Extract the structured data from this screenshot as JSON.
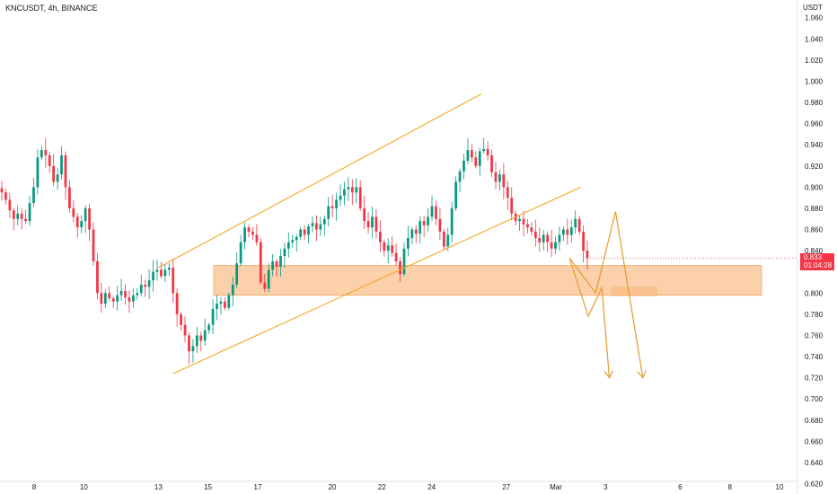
{
  "header": {
    "symbol_label": "KNCUSDT, 4h, BINANCE",
    "currency": "USDT"
  },
  "last_price": {
    "value": "0.833",
    "countdown": "01:04:28",
    "color": "#f23645"
  },
  "colors": {
    "up": "#089981",
    "down": "#f23645",
    "channel": "#f5a623",
    "zone": "#f9c08d",
    "projection": "#e69a2e"
  },
  "chart_data": {
    "type": "candlestick",
    "symbol": "KNCUSDT",
    "interval": "4h",
    "exchange": "BINANCE",
    "y_ticks": [
      "1.060",
      "1.040",
      "1.020",
      "1.000",
      "0.980",
      "0.960",
      "0.940",
      "0.920",
      "0.900",
      "0.880",
      "0.860",
      "0.840",
      "0.800",
      "0.780",
      "0.760",
      "0.740",
      "0.720",
      "0.700",
      "0.680",
      "0.660",
      "0.640",
      "0.620"
    ],
    "x_ticks": [
      "8",
      "10",
      "13",
      "15",
      "17",
      "20",
      "22",
      "24",
      "27",
      "Mar",
      "3",
      "6",
      "8",
      "10"
    ],
    "ylim": [
      0.612,
      1.075
    ],
    "x_domain": [
      7.6,
      10.45
    ],
    "closes": [
      0.895,
      0.888,
      0.878,
      0.87,
      0.875,
      0.87,
      0.868,
      0.885,
      0.9,
      0.928,
      0.935,
      0.93,
      0.92,
      0.905,
      0.912,
      0.93,
      0.9,
      0.88,
      0.872,
      0.862,
      0.868,
      0.88,
      0.86,
      0.83,
      0.8,
      0.79,
      0.8,
      0.795,
      0.792,
      0.798,
      0.802,
      0.796,
      0.792,
      0.798,
      0.8,
      0.808,
      0.806,
      0.812,
      0.82,
      0.822,
      0.816,
      0.822,
      0.824,
      0.8,
      0.78,
      0.77,
      0.76,
      0.745,
      0.75,
      0.76,
      0.755,
      0.765,
      0.77,
      0.785,
      0.79,
      0.792,
      0.786,
      0.798,
      0.808,
      0.828,
      0.848,
      0.862,
      0.858,
      0.855,
      0.848,
      0.81,
      0.804,
      0.822,
      0.83,
      0.825,
      0.835,
      0.842,
      0.848,
      0.85,
      0.853,
      0.86,
      0.855,
      0.863,
      0.866,
      0.86,
      0.865,
      0.87,
      0.882,
      0.88,
      0.888,
      0.892,
      0.898,
      0.9,
      0.895,
      0.9,
      0.88,
      0.868,
      0.862,
      0.872,
      0.858,
      0.848,
      0.84,
      0.845,
      0.838,
      0.83,
      0.818,
      0.842,
      0.852,
      0.86,
      0.856,
      0.868,
      0.864,
      0.872,
      0.882,
      0.87,
      0.858,
      0.844,
      0.855,
      0.88,
      0.905,
      0.915,
      0.925,
      0.935,
      0.928,
      0.92,
      0.934,
      0.936,
      0.93,
      0.914,
      0.905,
      0.912,
      0.9,
      0.89,
      0.875,
      0.868,
      0.87,
      0.865,
      0.862,
      0.858,
      0.852,
      0.848,
      0.855,
      0.848,
      0.842,
      0.848,
      0.855,
      0.86,
      0.855,
      0.862,
      0.87,
      0.858,
      0.84,
      0.833
    ],
    "annotations": {
      "support_zone": {
        "price_low": 0.798,
        "price_high": 0.826
      },
      "channel_upper": {
        "p1": [
          13.0,
          0.824
        ],
        "p2": [
          26.0,
          0.988
        ]
      },
      "channel_lower": {
        "p1": [
          13.6,
          0.724
        ],
        "p2": [
          30.0,
          0.9
        ]
      },
      "projection_paths": [
        [
          [
            29.55,
            0.833
          ],
          [
            30.6,
            0.8
          ],
          [
            31.4,
            0.877
          ],
          [
            32.5,
            0.72
          ]
        ],
        [
          [
            29.55,
            0.833
          ],
          [
            30.3,
            0.778
          ],
          [
            30.85,
            0.805
          ],
          [
            31.15,
            0.72
          ]
        ]
      ]
    }
  }
}
